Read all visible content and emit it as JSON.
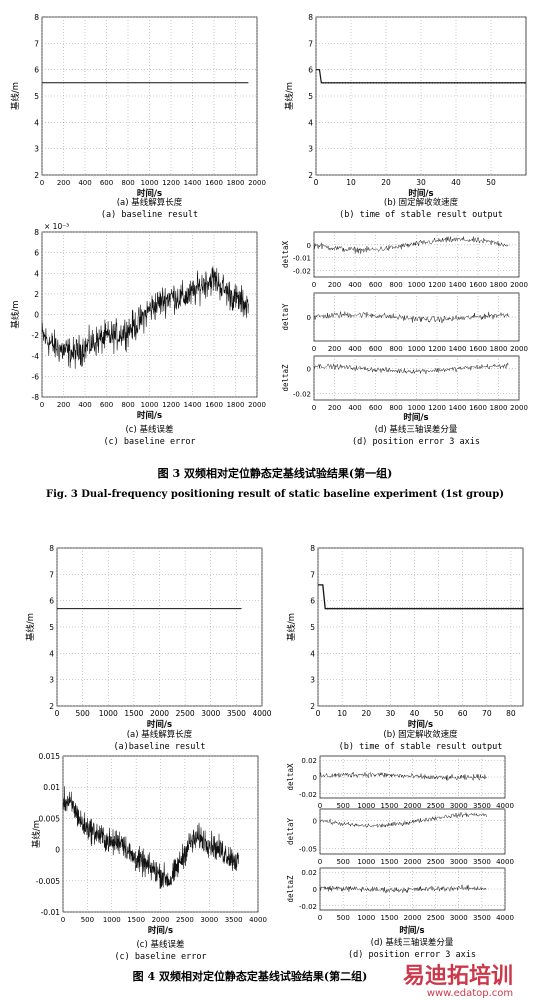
{
  "figures": [
    {
      "id": "fig3",
      "caption_cn": "图 3   双频相对定位静态定基线试验结果(第一组)",
      "caption_en": "Fig. 3   Dual-frequency positioning result of static baseline experiment (1st group)",
      "panels": {
        "a": {
          "cn": "(a)  基线解算长度",
          "en": "(a) baseline result",
          "xlabel": "时间/s",
          "ylabel": "基线/m",
          "xticks": [
            0,
            200,
            400,
            600,
            800,
            1000,
            1200,
            1400,
            1600,
            1800,
            2000
          ],
          "yticks": [
            2,
            3,
            4,
            5,
            6,
            7,
            8
          ]
        },
        "b": {
          "cn": "(b)  固定解收敛速度",
          "en": "(b) time of stable result output",
          "xlabel": "时间/s",
          "ylabel": "基线/m",
          "xticks": [
            0,
            10,
            20,
            30,
            40,
            50
          ],
          "yticks": [
            2,
            3,
            4,
            5,
            6,
            7,
            8
          ]
        },
        "c": {
          "cn": "(c) 基线误差",
          "en": "(c) baseline error",
          "xlabel": "时间/s",
          "ylabel": "基线/m",
          "exponent": "× 10⁻³",
          "xticks": [
            0,
            200,
            400,
            600,
            800,
            1000,
            1200,
            1400,
            1600,
            1800,
            2000
          ],
          "yticks": [
            -8,
            -6,
            -4,
            -2,
            0,
            2,
            4,
            6,
            8
          ]
        },
        "d": {
          "cn": "(d) 基线三轴误差分量",
          "en": "(d) position error 3 axis",
          "xlabel": "时间/s",
          "sub_labels": [
            "deltaX",
            "deltaY",
            "deltaZ"
          ],
          "xticks": [
            0,
            200,
            400,
            600,
            800,
            1000,
            1200,
            1400,
            1600,
            1800,
            2000
          ],
          "yticks_x": [
            "0",
            "-0.01",
            "-0.02"
          ],
          "yticks_y": [
            "0"
          ],
          "yticks_z": [
            "0",
            "-0.02"
          ]
        }
      }
    },
    {
      "id": "fig4",
      "caption_cn": "图 4   双频相对定位静态定基线试验结果(第二组)",
      "panels": {
        "a": {
          "cn": "(a)  基线解算长度",
          "en": "(a)baseline result",
          "xlabel": "时间/s",
          "ylabel": "基线/m",
          "xticks": [
            0,
            500,
            1000,
            1500,
            2000,
            2500,
            3000,
            3500,
            4000
          ],
          "yticks": [
            2,
            3,
            4,
            5,
            6,
            7,
            8
          ]
        },
        "b": {
          "cn": "(b)  固定解收敛速度",
          "en": "(b) time of stable result output",
          "xlabel": "时间/s",
          "ylabel": "基线/m",
          "xticks": [
            0,
            10,
            20,
            30,
            40,
            50,
            60,
            70,
            80
          ],
          "yticks": [
            2,
            3,
            4,
            5,
            6,
            7,
            8
          ]
        },
        "c": {
          "cn": "(c) 基线误差",
          "en": "(c) baseline error",
          "xlabel": "时间/s",
          "ylabel": "基线/m",
          "xticks": [
            0,
            500,
            1000,
            1500,
            2000,
            2500,
            3000,
            3500,
            4000
          ],
          "yticks": [
            "-0.01",
            "-0.005",
            "0",
            "0.005",
            "0.01",
            "0.015"
          ]
        },
        "d": {
          "cn": "(d) 基线三轴误差分量",
          "en": "(d) position error 3 axis",
          "xlabel": "时间/s",
          "sub_labels": [
            "deltaX",
            "deltaY",
            "deltaZ"
          ],
          "xticks": [
            0,
            500,
            1000,
            1500,
            2000,
            2500,
            3000,
            3500,
            4000
          ],
          "yticks_x": [
            "0.02",
            "0",
            "-0.02"
          ],
          "yticks_y": [
            "0",
            "-0.05"
          ],
          "yticks_z": [
            "0.02",
            "0",
            "-0.02"
          ]
        }
      }
    }
  ],
  "watermark": {
    "brand": "易迪拓培训",
    "url": "www.edatop.com"
  },
  "chart_data": [
    {
      "type": "line",
      "panel": "fig3-a",
      "x": [
        0,
        1920
      ],
      "y": [
        5.5,
        5.5
      ],
      "xlim": [
        0,
        2000
      ],
      "ylim": [
        2,
        8
      ]
    },
    {
      "type": "line",
      "panel": "fig3-b",
      "x": [
        0,
        1,
        1.5,
        60
      ],
      "y": [
        6.0,
        6.0,
        5.5,
        5.5
      ],
      "xlim": [
        0,
        60
      ],
      "ylim": [
        2,
        8
      ]
    },
    {
      "type": "line",
      "panel": "fig3-c",
      "xlim": [
        0,
        2000
      ],
      "ylim": [
        -8,
        8
      ],
      "trend_x": [
        0,
        100,
        200,
        300,
        400,
        500,
        600,
        700,
        800,
        900,
        1000,
        1100,
        1200,
        1300,
        1400,
        1500,
        1600,
        1700,
        1800,
        1900
      ],
      "trend_y": [
        -2.0,
        -3.0,
        -3.5,
        -3.8,
        -3.2,
        -2.6,
        -2.2,
        -2.0,
        -1.5,
        -0.8,
        0.5,
        1.2,
        1.8,
        1.6,
        2.0,
        3.0,
        3.5,
        2.4,
        1.5,
        1.0
      ]
    },
    {
      "type": "line",
      "panel": "fig3-d",
      "series_names": [
        "deltaX",
        "deltaY",
        "deltaZ"
      ],
      "xlim": [
        0,
        2000
      ]
    },
    {
      "type": "line",
      "panel": "fig4-a",
      "x": [
        0,
        3600
      ],
      "y": [
        5.7,
        5.7
      ],
      "xlim": [
        0,
        4000
      ],
      "ylim": [
        2,
        8
      ]
    },
    {
      "type": "line",
      "panel": "fig4-b",
      "x": [
        0,
        1,
        2,
        3,
        4,
        85
      ],
      "y": [
        6.6,
        6.6,
        6.6,
        5.7,
        5.7,
        5.7
      ],
      "xlim": [
        0,
        85
      ],
      "ylim": [
        2,
        8
      ]
    },
    {
      "type": "line",
      "panel": "fig4-c",
      "xlim": [
        0,
        4000
      ],
      "ylim": [
        -0.01,
        0.015
      ],
      "trend_x": [
        0,
        200,
        400,
        600,
        800,
        1000,
        1200,
        1400,
        1600,
        1800,
        2000,
        2200,
        2400,
        2600,
        2800,
        3000,
        3200,
        3400,
        3600
      ],
      "trend_y": [
        0.008,
        0.007,
        0.004,
        0.003,
        0.002,
        0.001,
        0.0015,
        -0.001,
        -0.002,
        -0.003,
        -0.004,
        -0.005,
        -0.002,
        0.001,
        0.002,
        0.001,
        0.0,
        -0.001,
        -0.002
      ]
    },
    {
      "type": "line",
      "panel": "fig4-d",
      "series_names": [
        "deltaX",
        "deltaY",
        "deltaZ"
      ],
      "xlim": [
        0,
        4000
      ]
    }
  ]
}
